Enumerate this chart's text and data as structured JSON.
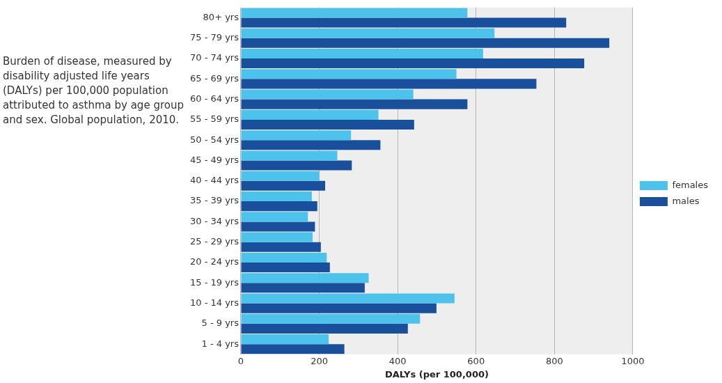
{
  "chart_data": {
    "type": "bar",
    "orientation": "horizontal",
    "title": "Burden of disease, measured by disability adjusted life years (DALYs) per 100,000 population attributed to asthma by age group and sex. Global population, 2010.",
    "xlabel": "DALYs (per 100,000)",
    "categories": [
      "80+ yrs",
      "75 - 79 yrs",
      "70 - 74 yrs",
      "65 - 69 yrs",
      "60 - 64 yrs",
      "55 - 59 yrs",
      "50 - 54 yrs",
      "45 - 49 yrs",
      "40 - 44 yrs",
      "35 - 39 yrs",
      "30 - 34 yrs",
      "25 - 29 yrs",
      "20 - 24 yrs",
      "15 - 19 yrs",
      "10 - 14 yrs",
      "5 - 9 yrs",
      "1 - 4 yrs"
    ],
    "series": [
      {
        "name": "females",
        "color": "#4dc3ec",
        "values": [
          578,
          647,
          618,
          550,
          440,
          351,
          281,
          246,
          200,
          181,
          171,
          183,
          219,
          326,
          545,
          457,
          224
        ]
      },
      {
        "name": "males",
        "color": "#1a4f9c",
        "values": [
          830,
          940,
          876,
          754,
          578,
          442,
          356,
          283,
          215,
          195,
          189,
          204,
          227,
          316,
          499,
          426,
          264
        ]
      }
    ],
    "xlim": [
      0,
      1000
    ],
    "xticks": [
      0,
      200,
      400,
      600,
      800,
      1000
    ],
    "grid": "x",
    "legend": "right"
  }
}
